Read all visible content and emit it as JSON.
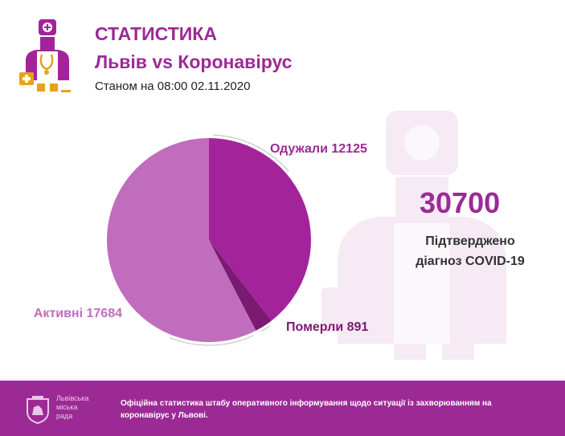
{
  "header": {
    "title": "СТАТИСТИКА",
    "subtitle": "Львів vs Коронавірус",
    "date": "Станом на 08:00 02.11.2020"
  },
  "summary": {
    "confirmed": "30700",
    "caption": "Підтверджено діагноз COVID-19"
  },
  "chart_data": {
    "type": "pie",
    "categories": [
      "Одужали",
      "Померли",
      "Активні"
    ],
    "values": [
      12125,
      891,
      17684
    ],
    "labels": [
      "Одужали 12125",
      "Померли 891",
      "Активні 17684"
    ],
    "colors": [
      "#a3249a",
      "#7a1a72",
      "#c06dbd"
    ],
    "start": "12 o'clock",
    "direction": "clockwise"
  },
  "footer": {
    "org_name": "Львівська\nміська\nрада",
    "text": "Офіційна статистика штабу оперативного інформування щодо ситуації із захворюванням на коронавірус у Львові.",
    "background": "#9c2a95"
  },
  "colors": {
    "accent": "#9c2a95",
    "watermark": "#f6eaf4"
  }
}
